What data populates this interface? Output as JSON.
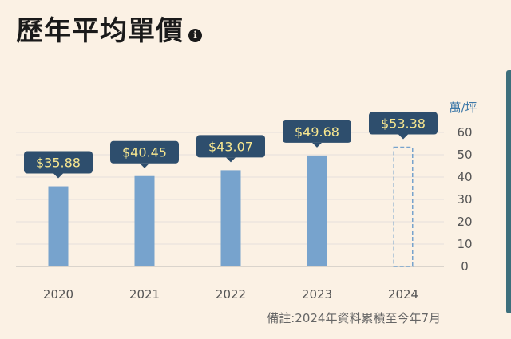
{
  "header": {
    "title": "歷年平均單價",
    "info_icon": "info-icon",
    "info_glyph": "i"
  },
  "footnote": "備註:2024年資料累積至今年7月",
  "colors": {
    "bar": "#77a3cd",
    "label_bg": "#2e4e6d",
    "label_text": "#f7e68f",
    "grid": "#e4e0dc",
    "accent": "#3d6f7c"
  },
  "chart_data": {
    "type": "bar",
    "categories": [
      "2020",
      "2021",
      "2022",
      "2023",
      "2024"
    ],
    "values": [
      35.88,
      40.45,
      43.07,
      49.68,
      53.38
    ],
    "data_labels": [
      "$35.88",
      "$40.45",
      "$43.07",
      "$49.68",
      "$53.38"
    ],
    "estimated": [
      false,
      false,
      false,
      false,
      true
    ],
    "title": "",
    "xlabel": "",
    "ylabel": "萬/坪",
    "ylim": [
      0,
      60
    ],
    "yticks": [
      0,
      10,
      20,
      30,
      40,
      50,
      60
    ],
    "axis_position": "right",
    "grid": true
  }
}
